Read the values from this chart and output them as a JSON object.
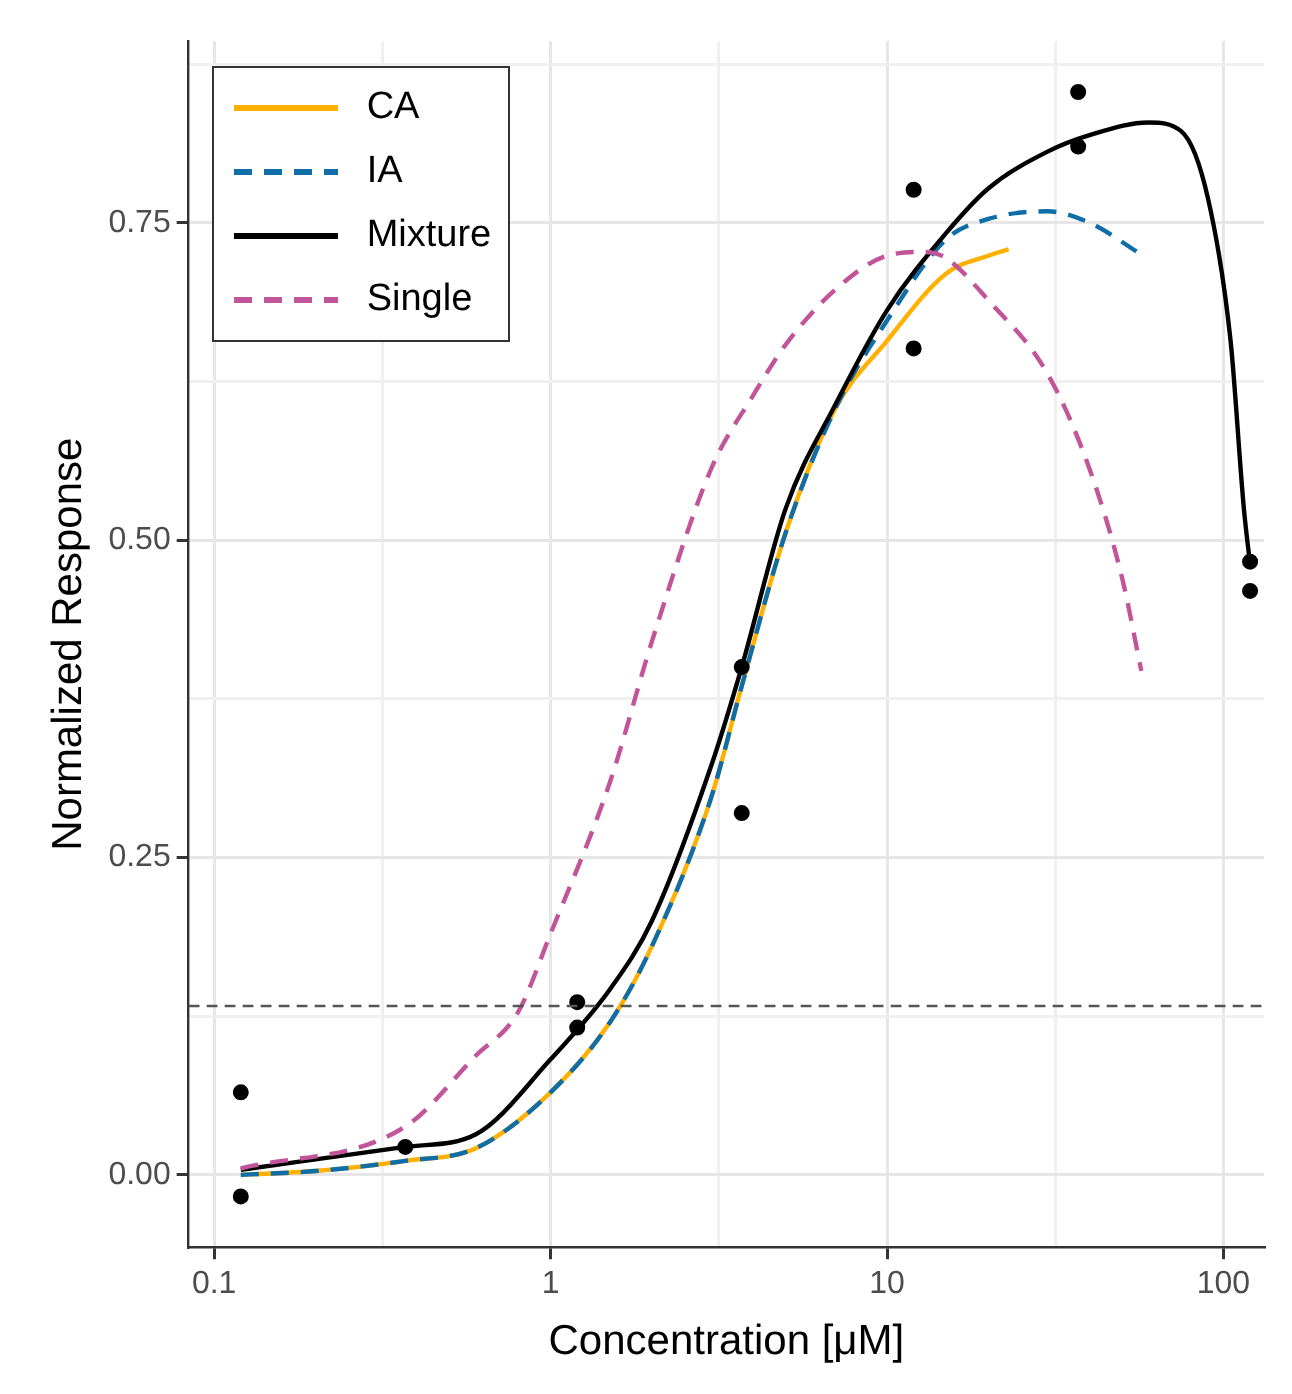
{
  "chart_data": {
    "type": "line",
    "xlabel": "Concentration [μM]",
    "ylabel": "Normalized Response",
    "log": "x",
    "grid": true,
    "legend": "top left",
    "xlim": [
      0.084,
      132
    ],
    "xticks": [
      {
        "value": 0.1,
        "label": "0.1"
      },
      {
        "value": 0.316,
        "label": null
      },
      {
        "value": 1,
        "label": "1"
      },
      {
        "value": 3.16,
        "label": null
      },
      {
        "value": 10,
        "label": "10"
      },
      {
        "value": 31.6,
        "label": null
      },
      {
        "value": 100,
        "label": "100"
      }
    ],
    "ylim": [
      -0.057,
      0.893
    ],
    "yticks": [
      {
        "value": 0,
        "label": "0.00"
      },
      {
        "value": 0.125,
        "label": null
      },
      {
        "value": 0.25,
        "label": "0.25"
      },
      {
        "value": 0.375,
        "label": null
      },
      {
        "value": 0.5,
        "label": "0.50"
      },
      {
        "value": 0.625,
        "label": null
      },
      {
        "value": 0.75,
        "label": "0.75"
      },
      {
        "value": 0.875,
        "label": null
      }
    ],
    "ref_lines": [
      {
        "axis": "y",
        "value": 0.133,
        "color": "#555555",
        "line_style": "dashed"
      }
    ],
    "series": [
      {
        "name": "CA",
        "color": "#ffb000",
        "line_style": "solid",
        "x": [
          0.12,
          0.2,
          0.37,
          0.6,
          1,
          1.5,
          2,
          3,
          3.7,
          5,
          7,
          10,
          15,
          20,
          23
        ],
        "values": [
          0.0,
          0.003,
          0.011,
          0.021,
          0.065,
          0.12,
          0.18,
          0.297,
          0.385,
          0.506,
          0.603,
          0.657,
          0.71,
          0.724,
          0.729
        ]
      },
      {
        "name": "IA",
        "color": "#0f6ea8",
        "line_style": "dashed",
        "x": [
          0.12,
          0.2,
          0.37,
          0.6,
          1,
          1.5,
          2,
          3,
          3.7,
          5,
          7,
          10,
          15,
          20,
          30,
          40,
          57
        ],
        "values": [
          0.0,
          0.003,
          0.011,
          0.021,
          0.065,
          0.12,
          0.18,
          0.297,
          0.385,
          0.506,
          0.603,
          0.673,
          0.737,
          0.753,
          0.759,
          0.75,
          0.725
        ]
      },
      {
        "name": "Mixture",
        "color": "#000000",
        "line_style": "solid",
        "x": [
          0.12,
          0.37,
          0.6,
          1,
          1.5,
          2,
          3,
          3.7,
          5,
          7,
          10,
          15,
          20,
          30,
          40,
          60,
          75,
          90,
          105,
          115,
          120
        ],
        "values": [
          0.004,
          0.022,
          0.032,
          0.091,
          0.146,
          0.2,
          0.322,
          0.4,
          0.525,
          0.606,
          0.681,
          0.742,
          0.777,
          0.806,
          0.819,
          0.829,
          0.822,
          0.769,
          0.657,
          0.525,
          0.481
        ]
      },
      {
        "name": "Single",
        "color": "#c2559a",
        "line_style": "dashed",
        "x": [
          0.12,
          0.37,
          0.6,
          0.8,
          1,
          1.5,
          2,
          3,
          4,
          5,
          7,
          10,
          13,
          15,
          20,
          30,
          40,
          50,
          57
        ],
        "values": [
          0.005,
          0.038,
          0.094,
          0.128,
          0.19,
          0.309,
          0.42,
          0.556,
          0.614,
          0.654,
          0.697,
          0.724,
          0.727,
          0.722,
          0.689,
          0.631,
          0.556,
          0.47,
          0.397
        ]
      },
      {
        "type": "scatter",
        "color": "#000000",
        "marker": "circle",
        "x": [
          0.12,
          0.12,
          0.37,
          1.2,
          1.2,
          3.7,
          3.7,
          12,
          12,
          37,
          37,
          120,
          120
        ],
        "values": [
          0.065,
          -0.017,
          0.022,
          0.136,
          0.116,
          0.4,
          0.285,
          0.776,
          0.651,
          0.853,
          0.81,
          0.483,
          0.46
        ]
      }
    ]
  }
}
